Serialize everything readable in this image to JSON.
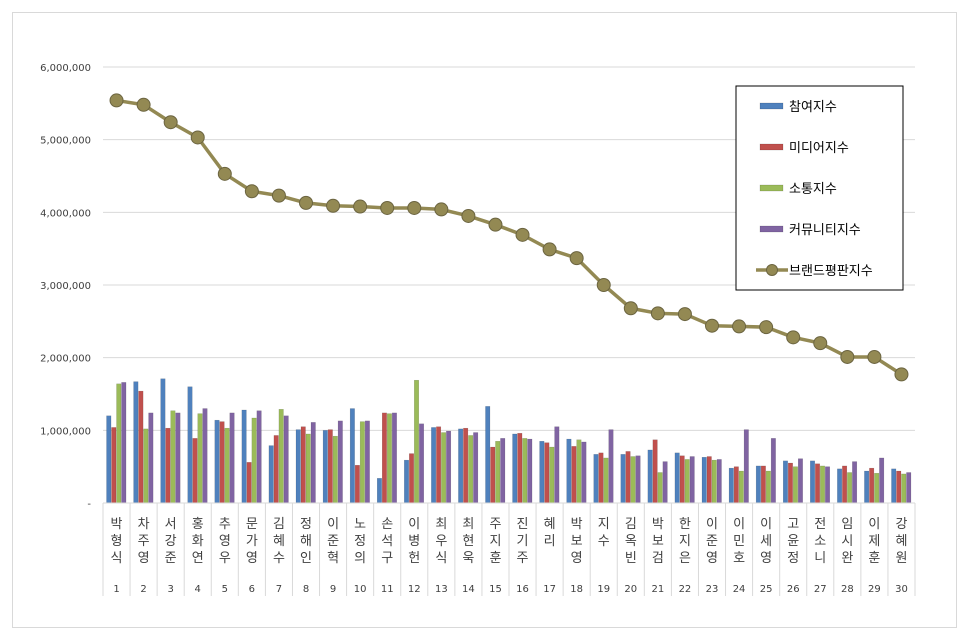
{
  "chart_data": {
    "type": "bar",
    "y_ticks": [
      "-",
      "1,000,000",
      "2,000,000",
      "3,000,000",
      "4,000,000",
      "5,000,000",
      "6,000,000"
    ],
    "ylim": [
      0,
      6000000
    ],
    "grid": true,
    "legend_position": "top-right",
    "categories": [
      "박형식",
      "차주영",
      "서강준",
      "홍화연",
      "추영우",
      "문가영",
      "김혜수",
      "정해인",
      "이준혁",
      "노정의",
      "손석구",
      "이병헌",
      "최우식",
      "최현욱",
      "주지훈",
      "진기주",
      "혜리",
      "박보영",
      "지수",
      "김옥빈",
      "박보검",
      "한지은",
      "이준영",
      "이민호",
      "이세영",
      "고윤정",
      "전소니",
      "임시완",
      "이제훈",
      "강혜원"
    ],
    "ranks": [
      "1",
      "2",
      "3",
      "4",
      "5",
      "6",
      "7",
      "8",
      "9",
      "10",
      "11",
      "12",
      "13",
      "14",
      "15",
      "16",
      "17",
      "18",
      "19",
      "20",
      "21",
      "22",
      "23",
      "24",
      "25",
      "26",
      "27",
      "28",
      "29",
      "30"
    ],
    "series": [
      {
        "name": "참여지수",
        "type": "bar",
        "color": "#4f81bd",
        "values": [
          1200000,
          1670000,
          1710000,
          1600000,
          1140000,
          1280000,
          790000,
          1010000,
          1000000,
          1300000,
          340000,
          590000,
          1040000,
          1020000,
          1330000,
          950000,
          850000,
          880000,
          670000,
          670000,
          730000,
          690000,
          630000,
          480000,
          510000,
          580000,
          580000,
          470000,
          440000,
          470000
        ]
      },
      {
        "name": "미디어지수",
        "type": "bar",
        "color": "#c0504d",
        "values": [
          1040000,
          1540000,
          1030000,
          890000,
          1120000,
          560000,
          930000,
          1050000,
          1010000,
          520000,
          1240000,
          680000,
          1050000,
          1030000,
          770000,
          960000,
          830000,
          780000,
          690000,
          710000,
          870000,
          650000,
          640000,
          500000,
          510000,
          550000,
          540000,
          510000,
          480000,
          440000
        ]
      },
      {
        "name": "소통지수",
        "type": "bar",
        "color": "#9bbb59",
        "values": [
          1640000,
          1020000,
          1270000,
          1230000,
          1030000,
          1170000,
          1290000,
          950000,
          920000,
          1120000,
          1230000,
          1690000,
          970000,
          930000,
          850000,
          890000,
          770000,
          870000,
          620000,
          640000,
          420000,
          600000,
          590000,
          440000,
          440000,
          500000,
          510000,
          420000,
          410000,
          400000
        ]
      },
      {
        "name": "커뮤니티지수",
        "type": "bar",
        "color": "#8064a2",
        "values": [
          1660000,
          1240000,
          1240000,
          1300000,
          1240000,
          1270000,
          1200000,
          1110000,
          1130000,
          1130000,
          1240000,
          1090000,
          990000,
          970000,
          890000,
          880000,
          1050000,
          840000,
          1010000,
          650000,
          570000,
          640000,
          600000,
          1010000,
          890000,
          610000,
          500000,
          570000,
          620000,
          420000
        ]
      },
      {
        "name": "브랜드평판지수",
        "type": "line",
        "color": "#938953",
        "values": [
          5540000,
          5480000,
          5240000,
          5030000,
          4530000,
          4290000,
          4230000,
          4130000,
          4090000,
          4080000,
          4060000,
          4060000,
          4040000,
          3950000,
          3830000,
          3690000,
          3490000,
          3370000,
          3000000,
          2680000,
          2610000,
          2600000,
          2440000,
          2430000,
          2420000,
          2280000,
          2200000,
          2010000,
          2010000,
          1770000
        ]
      }
    ]
  }
}
